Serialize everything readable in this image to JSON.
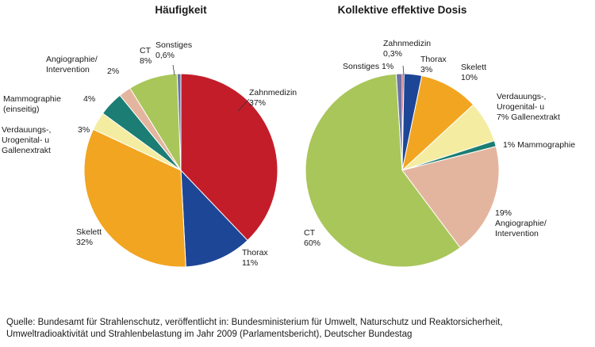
{
  "chart_data": [
    {
      "type": "pie",
      "title": "Häufigkeit",
      "slices": [
        {
          "label": "Zahnmedizin",
          "value_text": "37%",
          "value": 37,
          "color": "#c41d2a"
        },
        {
          "label": "Thorax",
          "value_text": "11%",
          "value": 11,
          "color": "#1d4696"
        },
        {
          "label": "Skelett",
          "value_text": "32%",
          "value": 32,
          "color": "#f2a521"
        },
        {
          "label": "Verdauungs-, Urogenital- u Gallenextrakt",
          "value_text": "3%",
          "value": 3,
          "color": "#f4eca0"
        },
        {
          "label": "Mammographie (einseitig)",
          "value_text": "4%",
          "value": 4,
          "color": "#1b7d73"
        },
        {
          "label": "Angiographie/ Intervention",
          "value_text": "2%",
          "value": 2,
          "color": "#e4b59e"
        },
        {
          "label": "CT",
          "value_text": "8%",
          "value": 8,
          "color": "#a9c65a"
        },
        {
          "label": "Sonstiges",
          "value_text": "0,6%",
          "value": 0.6,
          "color": "#6b74a8"
        }
      ]
    },
    {
      "type": "pie",
      "title": "Kollektive effektive Dosis",
      "slices": [
        {
          "label": "Zahnmedizin",
          "value_text": "0,3%",
          "value": 0.3,
          "color": "#c41d2a"
        },
        {
          "label": "Thorax",
          "value_text": "3%",
          "value": 3,
          "color": "#1d4696"
        },
        {
          "label": "Skelett",
          "value_text": "10%",
          "value": 10,
          "color": "#f2a521"
        },
        {
          "label": "Verdauungs-, Urogenital- u Gallenextrakt",
          "value_text": "7%",
          "value": 7,
          "color": "#f4eca0"
        },
        {
          "label": "Mammographie",
          "value_text": "1%",
          "value": 1,
          "color": "#1b7d73"
        },
        {
          "label": "Angiographie/ Intervention",
          "value_text": "19%",
          "value": 19,
          "color": "#e4b59e"
        },
        {
          "label": "CT",
          "value_text": "60%",
          "value": 60,
          "color": "#a9c65a"
        },
        {
          "label": "Sonstiges",
          "value_text": "1%",
          "value": 1,
          "color": "#6b74a8"
        }
      ]
    }
  ],
  "source": {
    "line1": "Quelle: Bundesamt für Strahlenschutz, veröffentlicht in: Bundesministerium für Umwelt, Naturschutz und Reaktorsicherheit,",
    "line2": "Umweltradioaktivität und Strahlenbelastung im Jahr 2009 (Parlamentsbericht), Deutscher Bundestag"
  }
}
